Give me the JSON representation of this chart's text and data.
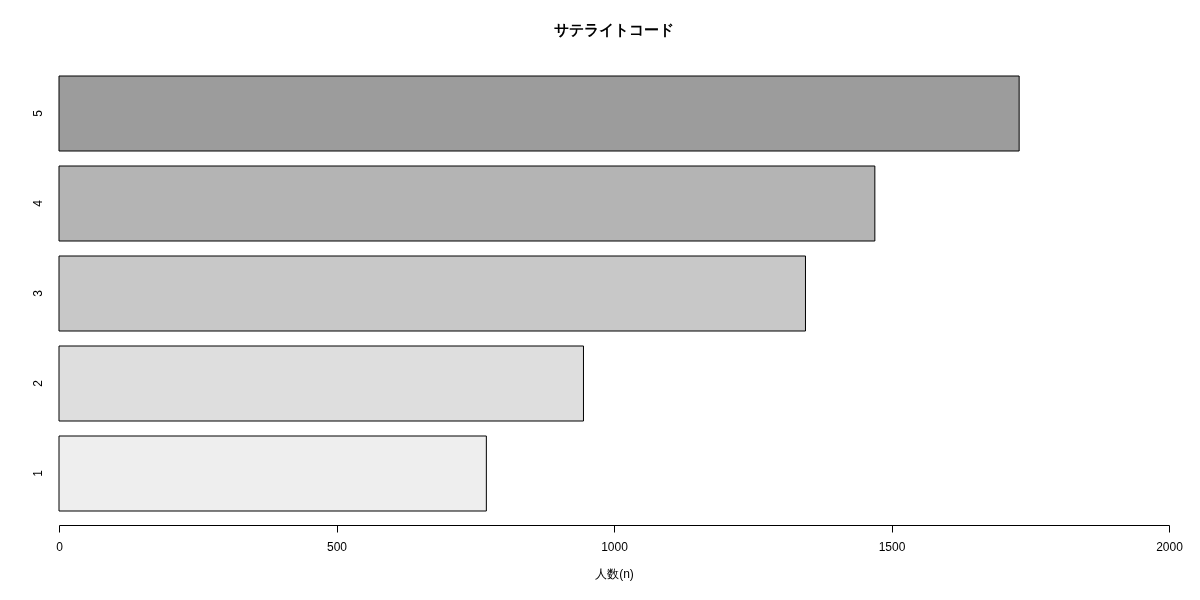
{
  "chart_data": {
    "type": "bar",
    "title": "サテライトコード",
    "xlabel": "人数(n)",
    "categories": [
      "5",
      "4",
      "3",
      "2",
      "1"
    ],
    "values": [
      1730,
      1470,
      1345,
      945,
      770
    ],
    "colors": [
      "#9c9c9c",
      "#b4b4b4",
      "#c8c8c8",
      "#dedede",
      "#eeeeee"
    ],
    "orientation": "horizontal",
    "xlim": [
      0,
      2000
    ],
    "xticks": [
      0,
      500,
      1000,
      1500,
      2000
    ]
  }
}
